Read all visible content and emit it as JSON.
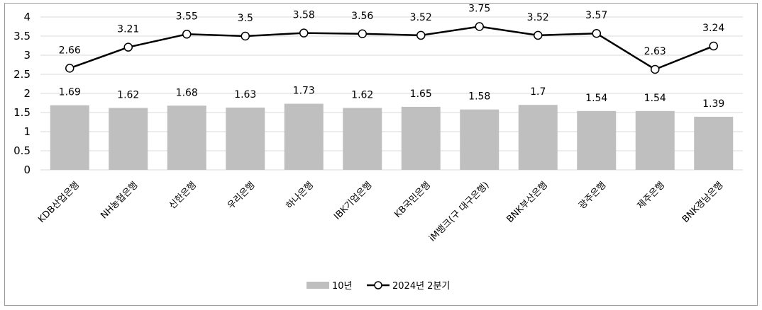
{
  "chart_data": {
    "type": "bar+line",
    "categories": [
      "KDB산업은행",
      "NH농협은행",
      "신한은행",
      "우리은행",
      "하나은행",
      "IBK기업은행",
      "KB국민은행",
      "iM뱅크(구 대구은행)",
      "BNK부산은행",
      "광주은행",
      "제주은행",
      "BNK경남은행"
    ],
    "series": [
      {
        "name": "10년",
        "type": "bar",
        "color": "#bfbfbf",
        "values": [
          1.69,
          1.62,
          1.68,
          1.63,
          1.73,
          1.62,
          1.65,
          1.58,
          1.7,
          1.54,
          1.54,
          1.39
        ]
      },
      {
        "name": "2024년 2분기",
        "type": "line",
        "color": "#000000",
        "marker": "open-circle",
        "values": [
          2.66,
          3.21,
          3.55,
          3.5,
          3.58,
          3.56,
          3.52,
          3.75,
          3.52,
          3.57,
          2.63,
          3.24
        ]
      }
    ],
    "yticks": [
      "0",
      "0.5",
      "1",
      "1.5",
      "2",
      "2.5",
      "3",
      "3.5",
      "4"
    ],
    "ylim": [
      0,
      4
    ],
    "grid": true,
    "legend_position": "bottom-center",
    "title": "",
    "xlabel": "",
    "ylabel": ""
  }
}
